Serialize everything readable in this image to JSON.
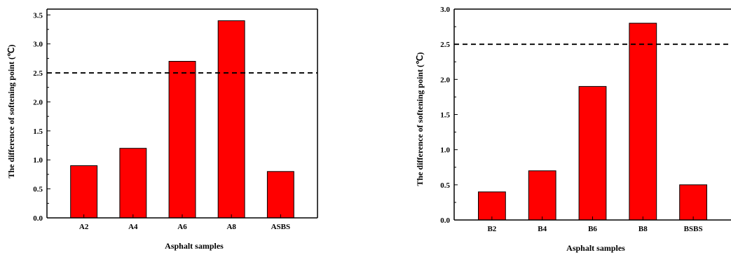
{
  "colors": {
    "bar_fill": "#ff0000",
    "bar_stroke": "#000000",
    "axis": "#000000",
    "threshold_line": "#000000"
  },
  "chart_data": [
    {
      "type": "bar",
      "categories": [
        "A2",
        "A4",
        "A6",
        "A8",
        "ASBS"
      ],
      "values": [
        0.9,
        1.2,
        2.7,
        3.4,
        0.8
      ],
      "xlabel": "Asphalt samples",
      "ylabel": "The difference of softening point (℃)",
      "ylim": [
        0,
        3.6
      ],
      "yticks": [
        0.0,
        0.5,
        1.0,
        1.5,
        2.0,
        2.5,
        3.0,
        3.5
      ],
      "ytick_labels": [
        "0.0",
        "0.5",
        "1.0",
        "1.5",
        "2.0",
        "2.5",
        "3.0",
        "3.5"
      ],
      "reference_line": {
        "y": 2.5,
        "style": "dashed"
      },
      "grid": false,
      "legend": "none"
    },
    {
      "type": "bar",
      "categories": [
        "B2",
        "B4",
        "B6",
        "B8",
        "BSBS"
      ],
      "values": [
        0.4,
        0.7,
        1.9,
        2.8,
        0.5
      ],
      "xlabel": "Asphalt samples",
      "ylabel": "The difference of softening point (℃)",
      "ylim": [
        0,
        3.0
      ],
      "yticks": [
        0.0,
        0.5,
        1.0,
        1.5,
        2.0,
        2.5,
        3.0
      ],
      "ytick_labels": [
        "0.0",
        "0.5",
        "1.0",
        "1.5",
        "2.0",
        "2.5",
        "3.0"
      ],
      "reference_line": {
        "y": 2.5,
        "style": "dashed"
      },
      "grid": false,
      "legend": "none"
    }
  ]
}
